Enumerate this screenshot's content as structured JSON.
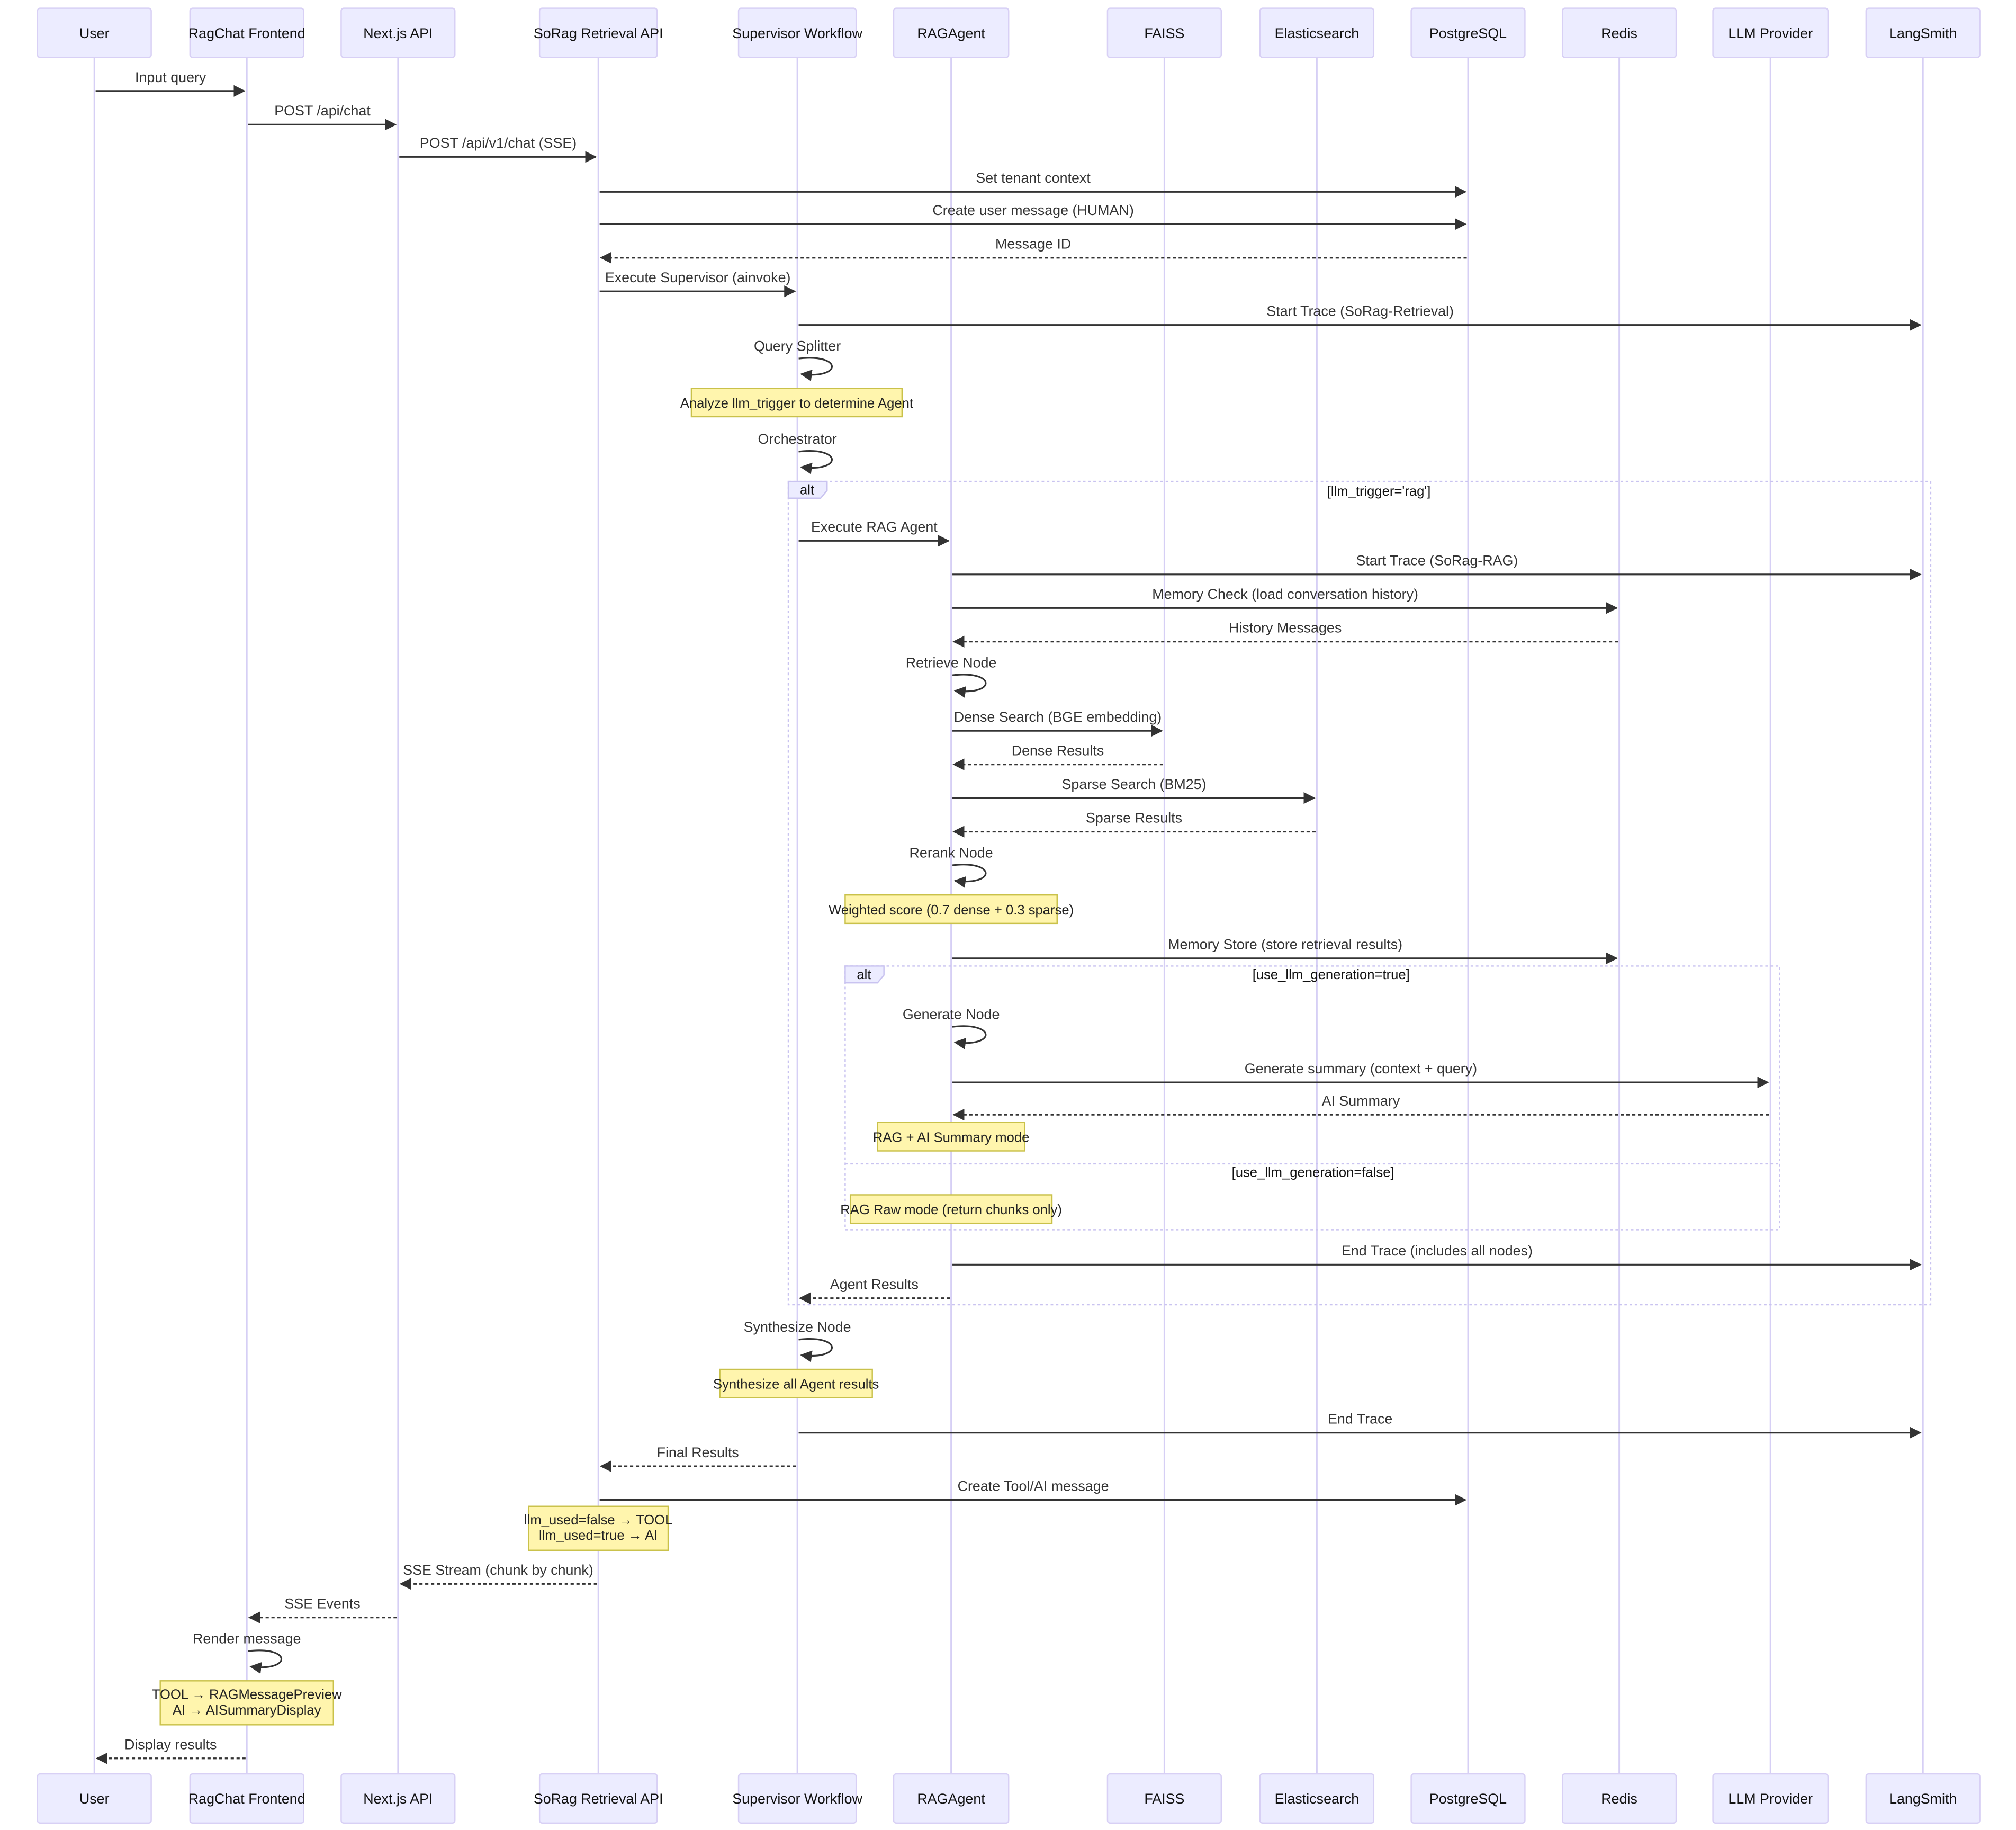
{
  "participants": [
    "User",
    "RagChat Frontend",
    "Next.js API",
    "SoRag Retrieval API",
    "Supervisor Workflow",
    "RAGAgent",
    "FAISS",
    "Elasticsearch",
    "PostgreSQL",
    "Redis",
    "LLM Provider",
    "LangSmith"
  ],
  "frames": [
    {
      "label": "alt",
      "condition": "[llm_trigger='rag']"
    },
    {
      "label": "alt",
      "condition": "[use_llm_generation=true]",
      "else_condition": "[use_llm_generation=false]"
    }
  ],
  "events": [
    {
      "type": "msg",
      "from": 0,
      "to": 1,
      "label": "Input query"
    },
    {
      "type": "msg",
      "from": 1,
      "to": 2,
      "label": "POST /api/chat"
    },
    {
      "type": "msg",
      "from": 2,
      "to": 3,
      "label": "POST /api/v1/chat (SSE)"
    },
    {
      "type": "msg",
      "from": 3,
      "to": 8,
      "label": "Set tenant context"
    },
    {
      "type": "msg",
      "from": 3,
      "to": 8,
      "label": "Create user message (HUMAN)"
    },
    {
      "type": "msg",
      "from": 8,
      "to": 3,
      "label": "Message ID",
      "dashed": true
    },
    {
      "type": "msg",
      "from": 3,
      "to": 4,
      "label": "Execute Supervisor (ainvoke)"
    },
    {
      "type": "msg",
      "from": 4,
      "to": 11,
      "label": "Start Trace (SoRag-Retrieval)"
    },
    {
      "type": "self",
      "on": 4,
      "label": "Query Splitter"
    },
    {
      "type": "note",
      "on": 4,
      "lines": [
        "Analyze llm_trigger to determine Agent"
      ]
    },
    {
      "type": "self",
      "on": 4,
      "label": "Orchestrator"
    },
    {
      "type": "msg",
      "from": 4,
      "to": 5,
      "label": "Execute RAG Agent"
    },
    {
      "type": "msg",
      "from": 5,
      "to": 11,
      "label": "Start Trace (SoRag-RAG)"
    },
    {
      "type": "msg",
      "from": 5,
      "to": 9,
      "label": "Memory Check (load conversation history)"
    },
    {
      "type": "msg",
      "from": 9,
      "to": 5,
      "label": "History Messages",
      "dashed": true
    },
    {
      "type": "self",
      "on": 5,
      "label": "Retrieve Node"
    },
    {
      "type": "msg",
      "from": 5,
      "to": 6,
      "label": "Dense Search (BGE embedding)"
    },
    {
      "type": "msg",
      "from": 6,
      "to": 5,
      "label": "Dense Results",
      "dashed": true
    },
    {
      "type": "msg",
      "from": 5,
      "to": 7,
      "label": "Sparse Search (BM25)"
    },
    {
      "type": "msg",
      "from": 7,
      "to": 5,
      "label": "Sparse Results",
      "dashed": true
    },
    {
      "type": "self",
      "on": 5,
      "label": "Rerank Node"
    },
    {
      "type": "note",
      "on": 5,
      "lines": [
        "Weighted score (0.7 dense + 0.3 sparse)"
      ]
    },
    {
      "type": "msg",
      "from": 5,
      "to": 9,
      "label": "Memory Store (store retrieval results)"
    },
    {
      "type": "self",
      "on": 5,
      "label": "Generate Node"
    },
    {
      "type": "msg",
      "from": 5,
      "to": 10,
      "label": "Generate summary (context + query)"
    },
    {
      "type": "msg",
      "from": 10,
      "to": 5,
      "label": "AI Summary",
      "dashed": true
    },
    {
      "type": "note",
      "on": 5,
      "lines": [
        "RAG + AI Summary mode"
      ]
    },
    {
      "type": "note",
      "on": 5,
      "lines": [
        "RAG Raw mode (return chunks only)"
      ]
    },
    {
      "type": "msg",
      "from": 5,
      "to": 11,
      "label": "End Trace (includes all nodes)"
    },
    {
      "type": "msg",
      "from": 5,
      "to": 4,
      "label": "Agent Results",
      "dashed": true
    },
    {
      "type": "self",
      "on": 4,
      "label": "Synthesize Node"
    },
    {
      "type": "note",
      "on": 4,
      "lines": [
        "Synthesize all Agent results"
      ]
    },
    {
      "type": "msg",
      "from": 4,
      "to": 11,
      "label": "End Trace"
    },
    {
      "type": "msg",
      "from": 4,
      "to": 3,
      "label": "Final Results",
      "dashed": true
    },
    {
      "type": "msg",
      "from": 3,
      "to": 8,
      "label": "Create Tool/AI message"
    },
    {
      "type": "note",
      "on": 3,
      "lines": [
        "llm_used=false → TOOL",
        "llm_used=true → AI"
      ]
    },
    {
      "type": "msg",
      "from": 3,
      "to": 2,
      "label": "SSE Stream (chunk by chunk)",
      "dashed": true
    },
    {
      "type": "msg",
      "from": 2,
      "to": 1,
      "label": "SSE Events",
      "dashed": true
    },
    {
      "type": "self",
      "on": 1,
      "label": "Render message"
    },
    {
      "type": "note",
      "on": 1,
      "lines": [
        "TOOL → RAGMessagePreview",
        "AI → AISummaryDisplay"
      ]
    },
    {
      "type": "msg",
      "from": 1,
      "to": 0,
      "label": "Display results",
      "dashed": true
    }
  ]
}
